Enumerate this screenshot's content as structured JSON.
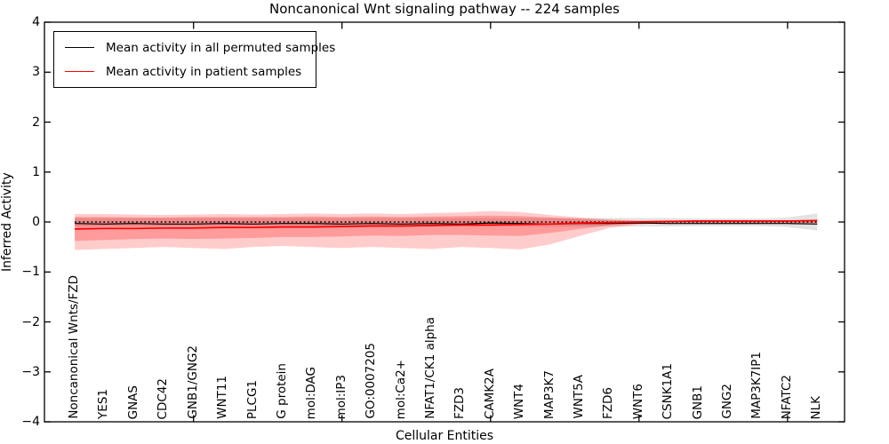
{
  "figure": {
    "title": "Noncanonical Wnt signaling pathway -- 224 samples",
    "xlabel": "Cellular Entities",
    "ylabel": "Inferred Activity"
  },
  "legend": {
    "position": "upper left",
    "entries": [
      {
        "label": "Mean activity in all permuted samples",
        "color": "#000000"
      },
      {
        "label": "Mean activity in patient samples",
        "color": "#ff0000"
      }
    ]
  },
  "chart_data": {
    "type": "line",
    "title": "Noncanonical Wnt signaling pathway -- 224 samples",
    "xlabel": "Cellular Entities",
    "ylabel": "Inferred Activity",
    "ylim": [
      -4,
      4
    ],
    "xlim": [
      -1.02,
      25.92
    ],
    "grid": false,
    "legend_position": "upper left",
    "yticks": [
      4,
      3,
      2,
      1,
      0,
      -1,
      -2,
      -3,
      -4
    ],
    "ytick_labels": [
      "4",
      "3",
      "2",
      "1",
      "0",
      "−1",
      "−2",
      "−3",
      "−4"
    ],
    "x_major_tick_indices": [
      4,
      9,
      14,
      19,
      24
    ],
    "categories": [
      "Noncanonical Wnts/FZD",
      "YES1",
      "GNAS",
      "CDC42",
      "GNB1/GNG2",
      "WNT11",
      "PLCG1",
      "G protein",
      "mol:DAG",
      "mol:IP3",
      "GO:0007205",
      "mol:Ca2+",
      "NFAT1/CK1 alpha",
      "FZD3",
      "CAMK2A",
      "WNT4",
      "MAP3K7",
      "WNT5A",
      "FZD6",
      "WNT6",
      "CSNK1A1",
      "GNB1",
      "GNG2",
      "MAP3K7IP1",
      "NFATC2",
      "NLK"
    ],
    "series": [
      {
        "name": "zero_reference",
        "style": "dotted",
        "color": "#000000",
        "width": 1.6,
        "values": [
          0,
          0,
          0,
          0,
          0,
          0,
          0,
          0,
          0,
          0,
          0,
          0,
          0,
          0,
          0,
          0,
          0,
          0,
          0,
          0,
          0,
          0,
          0,
          0,
          0,
          0
        ]
      },
      {
        "name": "permuted_mean",
        "label": "Mean activity in all permuted samples",
        "style": "solid",
        "color": "#000000",
        "width": 1.2,
        "values": [
          -0.03,
          -0.04,
          -0.03,
          -0.04,
          -0.04,
          -0.03,
          -0.04,
          -0.03,
          -0.03,
          -0.04,
          -0.03,
          -0.04,
          -0.03,
          -0.04,
          -0.02,
          -0.03,
          -0.04,
          -0.03,
          -0.03,
          -0.02,
          -0.03,
          -0.03,
          -0.03,
          -0.03,
          -0.03,
          -0.04
        ]
      },
      {
        "name": "patient_mean",
        "label": "Mean activity in patient samples",
        "style": "solid",
        "color": "#ff0000",
        "width": 1.7,
        "values": [
          -0.14,
          -0.13,
          -0.13,
          -0.12,
          -0.12,
          -0.11,
          -0.11,
          -0.1,
          -0.1,
          -0.09,
          -0.08,
          -0.08,
          -0.07,
          -0.06,
          -0.06,
          -0.05,
          -0.04,
          -0.02,
          -0.01,
          0.0,
          0.01,
          0.02,
          0.02,
          0.02,
          0.02,
          0.03
        ]
      }
    ],
    "bands": [
      {
        "name": "gray_permuted_band",
        "color": "rgba(128,128,128,0.22)",
        "top": [
          0.08,
          0.08,
          0.08,
          0.08,
          0.08,
          0.08,
          0.08,
          0.08,
          0.08,
          0.08,
          0.08,
          0.08,
          0.08,
          0.08,
          0.08,
          0.08,
          0.08,
          0.08,
          0.08,
          0.08,
          0.08,
          0.07,
          0.07,
          0.07,
          0.09,
          0.17
        ],
        "bottom": [
          -0.09,
          -0.09,
          -0.09,
          -0.09,
          -0.09,
          -0.09,
          -0.09,
          -0.09,
          -0.09,
          -0.09,
          -0.09,
          -0.09,
          -0.09,
          -0.09,
          -0.09,
          -0.09,
          -0.09,
          -0.09,
          -0.09,
          -0.09,
          -0.09,
          -0.08,
          -0.08,
          -0.08,
          -0.1,
          -0.17
        ]
      },
      {
        "name": "patient_outer_band",
        "color": "rgba(255,0,0,0.20)",
        "top": [
          0.16,
          0.16,
          0.15,
          0.14,
          0.15,
          0.16,
          0.15,
          0.16,
          0.17,
          0.16,
          0.17,
          0.16,
          0.18,
          0.19,
          0.22,
          0.2,
          0.14,
          0.09,
          0.05,
          0.03,
          0.03,
          0.03,
          0.03,
          0.03,
          0.03,
          0.05
        ],
        "bottom": [
          -0.56,
          -0.54,
          -0.52,
          -0.5,
          -0.52,
          -0.54,
          -0.5,
          -0.48,
          -0.5,
          -0.52,
          -0.5,
          -0.52,
          -0.54,
          -0.5,
          -0.52,
          -0.55,
          -0.45,
          -0.28,
          -0.12,
          -0.05,
          -0.02,
          -0.02,
          -0.02,
          -0.02,
          -0.02,
          -0.03
        ]
      },
      {
        "name": "patient_inner_band",
        "color": "rgba(255,0,0,0.24)",
        "top": [
          0.1,
          0.1,
          0.09,
          0.09,
          0.1,
          0.1,
          0.1,
          0.1,
          0.11,
          0.1,
          0.11,
          0.1,
          0.11,
          0.12,
          0.13,
          0.12,
          0.09,
          0.06,
          0.04,
          0.02,
          0.02,
          0.02,
          0.02,
          0.02,
          0.02,
          0.04
        ],
        "bottom": [
          -0.38,
          -0.36,
          -0.34,
          -0.33,
          -0.34,
          -0.33,
          -0.32,
          -0.3,
          -0.3,
          -0.29,
          -0.27,
          -0.28,
          -0.26,
          -0.26,
          -0.27,
          -0.28,
          -0.22,
          -0.14,
          -0.07,
          -0.03,
          -0.01,
          -0.01,
          -0.01,
          -0.01,
          -0.01,
          -0.02
        ]
      }
    ]
  }
}
